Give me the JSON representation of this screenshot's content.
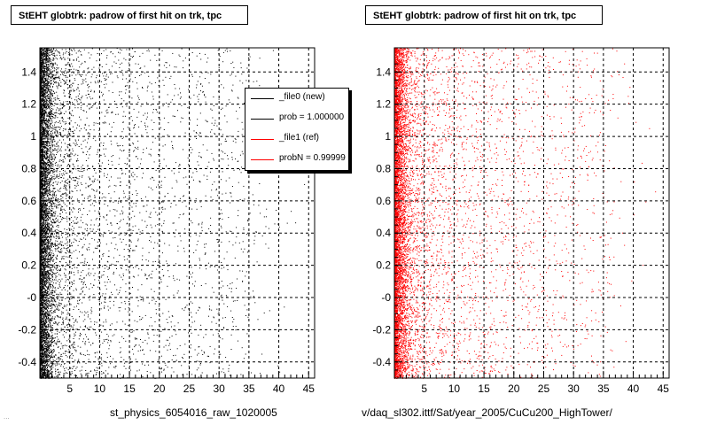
{
  "panels": [
    {
      "title": "StEHT globtrk: padrow of first hit on trk, tpc",
      "xlabel": "st_physics_6054016_raw_1020005"
    },
    {
      "title": "StEHT globtrk: padrow of first hit on trk, tpc",
      "xlabel": "v/daq_sl302.ittf/Sat/year_2005/CuCu200_HighTower/"
    }
  ],
  "legend": {
    "entries": [
      {
        "label": "_file0 (new)",
        "color": "#000000"
      },
      {
        "label": "prob = 1.000000",
        "color": "#000000"
      },
      {
        "label": "_file1 (ref)",
        "color": "#ff0000"
      },
      {
        "label": "probN = 0.99999",
        "color": "#ff0000"
      }
    ]
  },
  "footer_stamp": "...",
  "chart_data": [
    {
      "type": "scatter",
      "title": "StEHT globtrk: padrow of first hit on trk, tpc",
      "xlabel": "st_physics_6054016_raw_1020005",
      "ylabel": "",
      "xlim": [
        0,
        46
      ],
      "ylim": [
        -0.5,
        1.55
      ],
      "xticks": [
        "5",
        "10",
        "15",
        "20",
        "25",
        "30",
        "35",
        "40",
        "45"
      ],
      "yticks": [
        "-0.4",
        "-0.2",
        "-0",
        "0.2",
        "0.4",
        "0.6",
        "0.8",
        "1",
        "1.2",
        "1.4"
      ],
      "grid": true,
      "color": "#000000",
      "density_profile": {
        "x": [
          0,
          1,
          2,
          3,
          5,
          8,
          12,
          16,
          20,
          25,
          30,
          35,
          38,
          40,
          46
        ],
        "relative_density": [
          1.0,
          0.85,
          0.4,
          0.22,
          0.14,
          0.1,
          0.08,
          0.07,
          0.06,
          0.05,
          0.05,
          0.04,
          0.01,
          0.005,
          0.0
        ]
      }
    },
    {
      "type": "scatter",
      "title": "StEHT globtrk: padrow of first hit on trk, tpc",
      "xlabel": "v/daq_sl302.ittf/Sat/year_2005/CuCu200_HighTower/",
      "ylabel": "",
      "xlim": [
        0,
        46
      ],
      "ylim": [
        -0.5,
        1.55
      ],
      "xticks": [
        "5",
        "10",
        "15",
        "20",
        "25",
        "30",
        "35",
        "40",
        "45"
      ],
      "yticks": [
        "-0.4",
        "-0.2",
        "-0",
        "0.2",
        "0.4",
        "0.6",
        "0.8",
        "1",
        "1.2",
        "1.4"
      ],
      "grid": true,
      "color": "#ff0000",
      "density_profile": {
        "x": [
          0,
          1,
          2,
          3,
          5,
          8,
          12,
          16,
          20,
          25,
          30,
          35,
          38,
          40,
          46
        ],
        "relative_density": [
          1.0,
          0.85,
          0.4,
          0.22,
          0.14,
          0.1,
          0.08,
          0.07,
          0.06,
          0.05,
          0.05,
          0.04,
          0.01,
          0.005,
          0.0
        ]
      }
    }
  ]
}
